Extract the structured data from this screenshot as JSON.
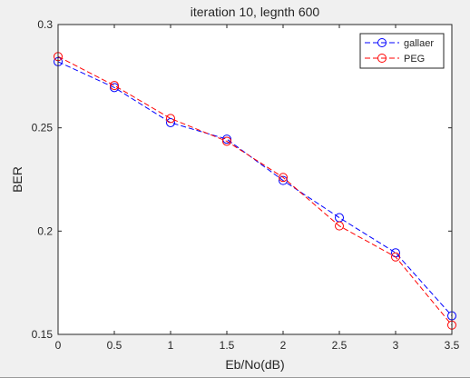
{
  "figure": {
    "background": "#f0f0f0",
    "axes_background": "#ffffff"
  },
  "chart_data": {
    "type": "line",
    "title": "iteration 10, legnth 600",
    "xlabel": "Eb/No(dB)",
    "ylabel": "BER",
    "xlim": [
      0,
      3.5
    ],
    "ylim": [
      0.15,
      0.3
    ],
    "xticks": [
      "0",
      "0.5",
      "1",
      "1.5",
      "2",
      "2.5",
      "3",
      "3.5"
    ],
    "yticks": [
      "0.15",
      "0.2",
      "0.25",
      "0.3"
    ],
    "grid": false,
    "legend_position": "top-right",
    "x": [
      0,
      0.5,
      1,
      1.5,
      2,
      2.5,
      3,
      3.5
    ],
    "series": [
      {
        "name": "gallaer",
        "color": "#0000ff",
        "linestyle": "dashed",
        "marker": "circle",
        "values": [
          0.282,
          0.2695,
          0.2525,
          0.2445,
          0.2245,
          0.2065,
          0.1895,
          0.159
        ]
      },
      {
        "name": "PEG",
        "color": "#ff0000",
        "linestyle": "dashed",
        "marker": "circle",
        "values": [
          0.2845,
          0.2705,
          0.2545,
          0.2435,
          0.226,
          0.2025,
          0.1875,
          0.1545
        ]
      }
    ]
  }
}
